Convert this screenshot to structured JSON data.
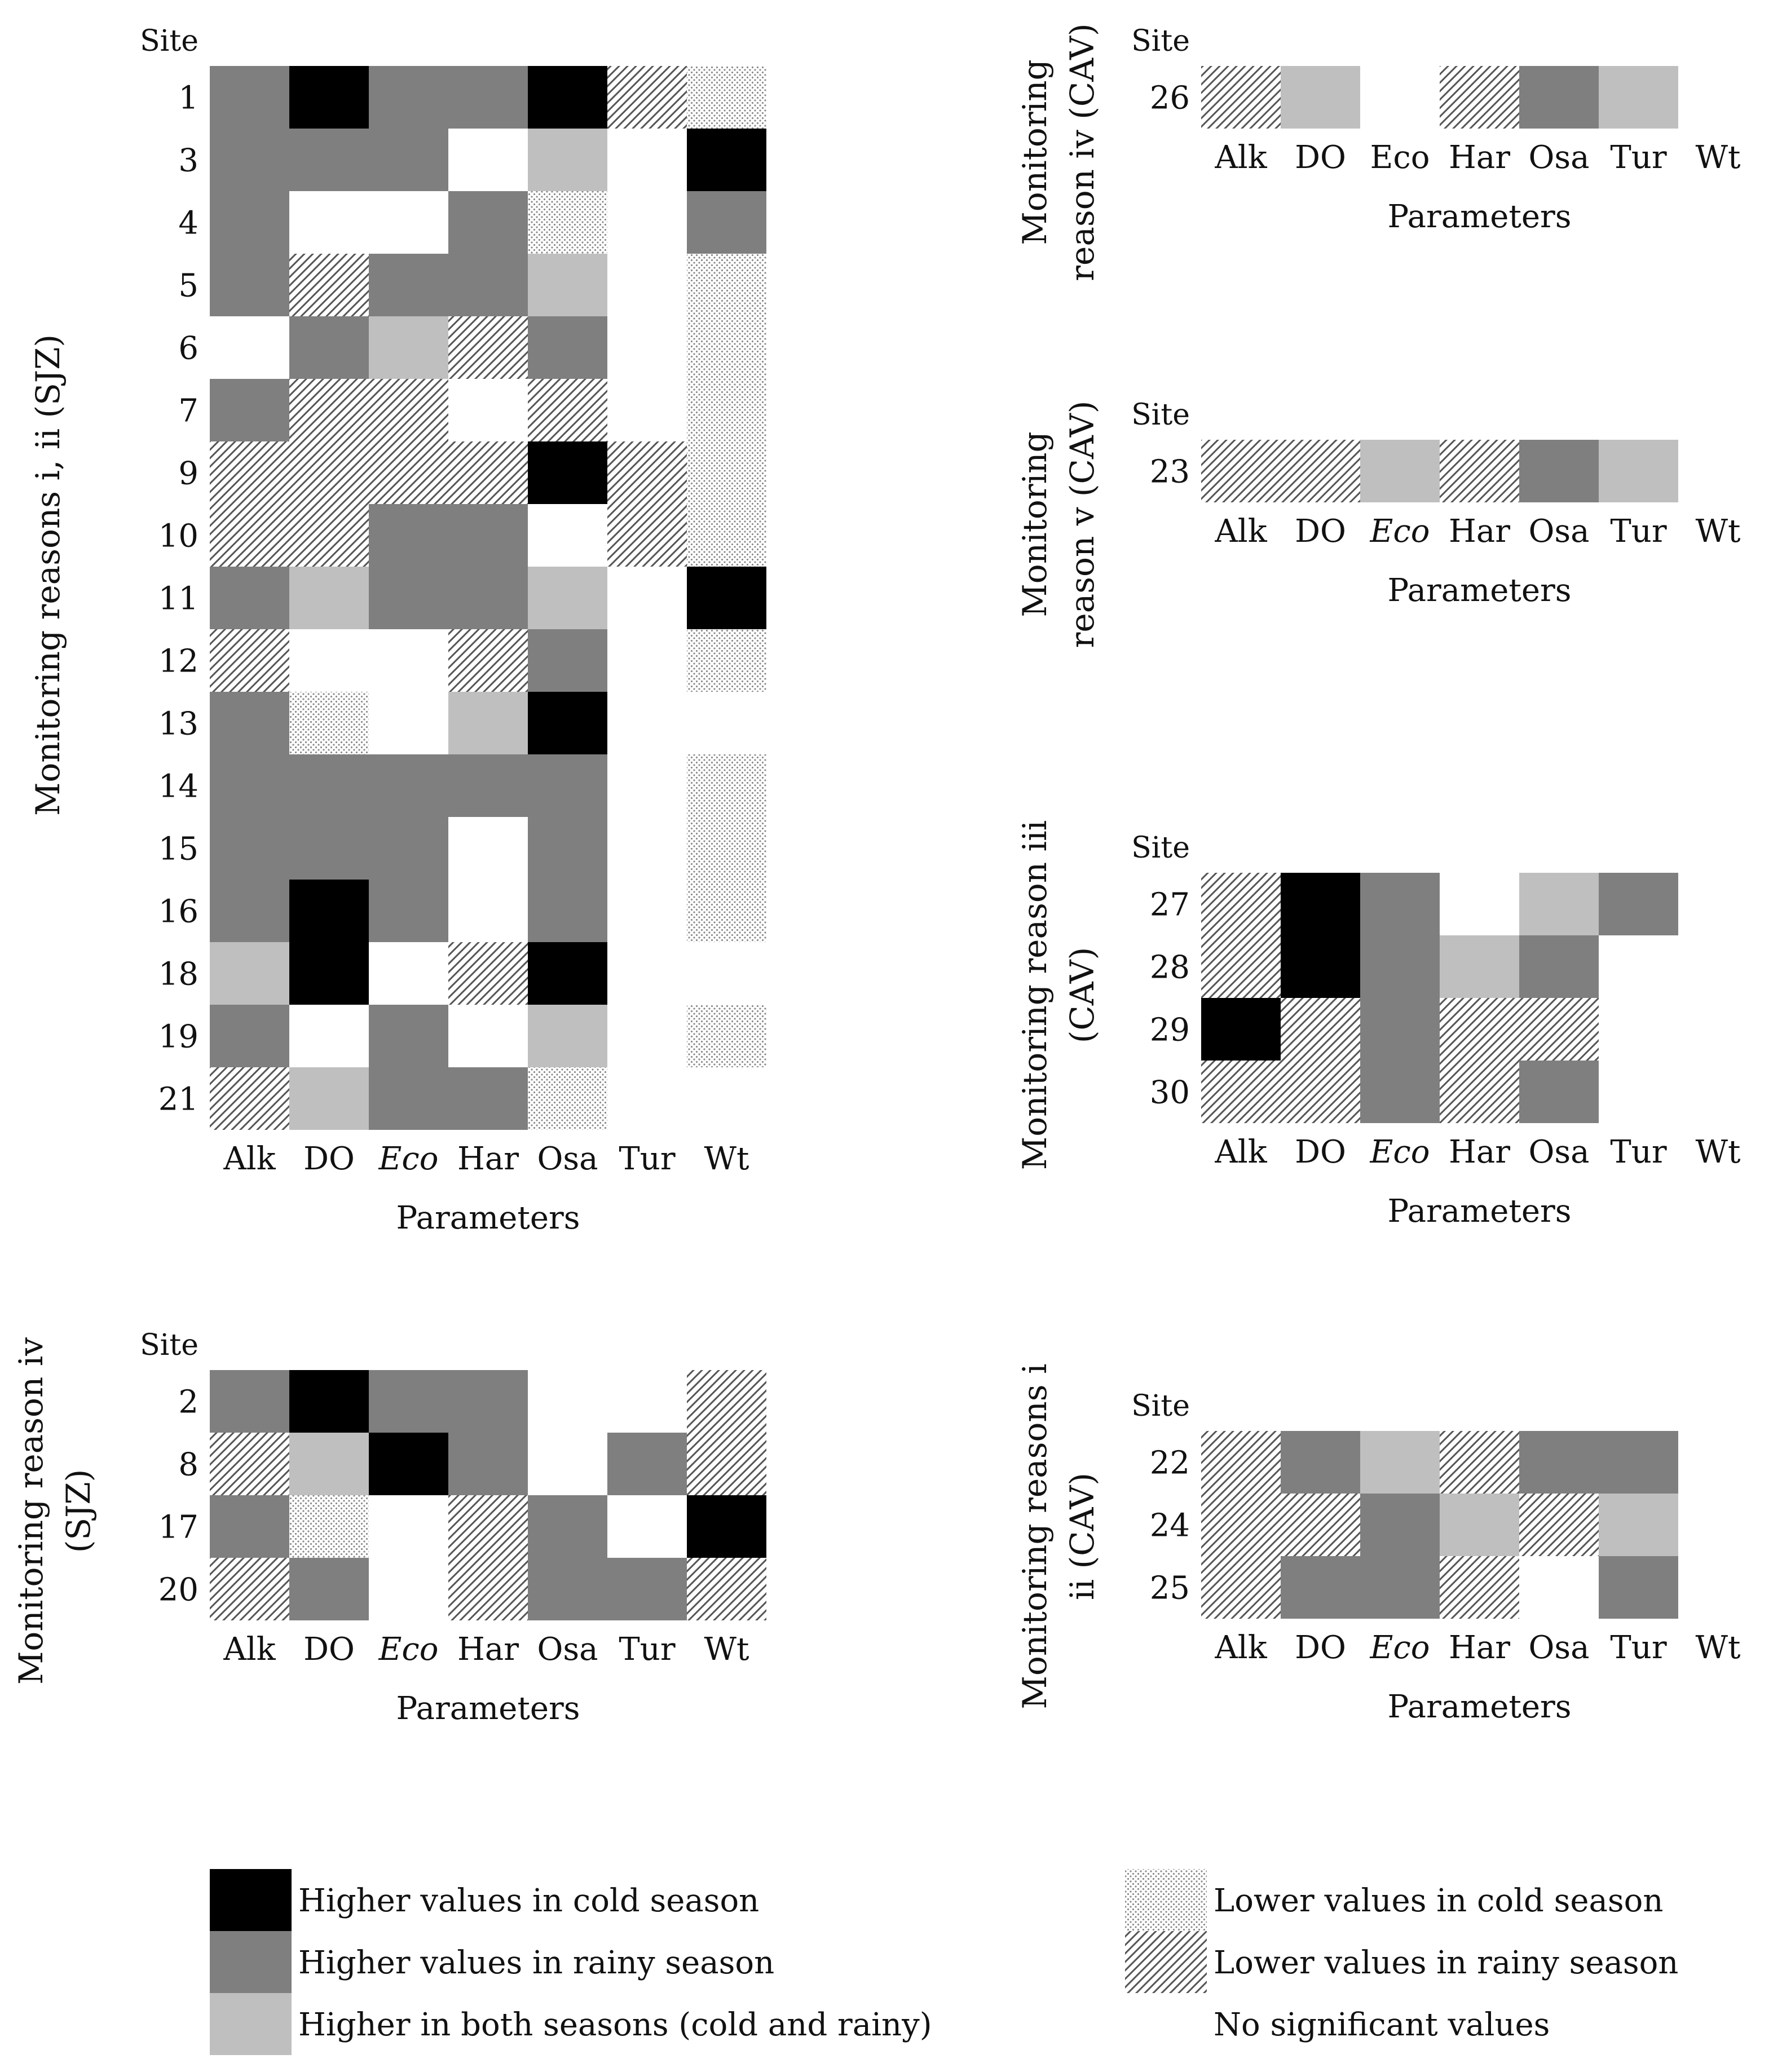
{
  "chart_data": [
    {
      "type": "heatmap",
      "title": "Monitoring reasons i, ii (SJZ)",
      "ylabel": "Site",
      "xlabel": "Parameters",
      "categories": [
        "Alk",
        "DO",
        "Eco",
        "Har",
        "Osa",
        "Tur",
        "Wt"
      ],
      "italic_categories": [
        "Eco"
      ],
      "rows": [
        {
          "site": "1",
          "values": [
            "R",
            "C",
            "R",
            "R",
            "C",
            "LR",
            "LC"
          ]
        },
        {
          "site": "3",
          "values": [
            "R",
            "R",
            "R",
            "N",
            "B",
            "N",
            "C"
          ]
        },
        {
          "site": "4",
          "values": [
            "R",
            "N",
            "N",
            "R",
            "LC",
            "N",
            "R"
          ]
        },
        {
          "site": "5",
          "values": [
            "R",
            "LR",
            "R",
            "R",
            "B",
            "N",
            "LC"
          ]
        },
        {
          "site": "6",
          "values": [
            "N",
            "R",
            "B",
            "LR",
            "R",
            "N",
            "LC"
          ]
        },
        {
          "site": "7",
          "values": [
            "R",
            "LR",
            "LR",
            "N",
            "LR",
            "N",
            "LC"
          ]
        },
        {
          "site": "9",
          "values": [
            "LR",
            "LR",
            "LR",
            "LR",
            "C",
            "LR",
            "LC"
          ]
        },
        {
          "site": "10",
          "values": [
            "LR",
            "LR",
            "R",
            "R",
            "N",
            "LR",
            "LC"
          ]
        },
        {
          "site": "11",
          "values": [
            "R",
            "B",
            "R",
            "R",
            "B",
            "N",
            "C"
          ]
        },
        {
          "site": "12",
          "values": [
            "LR",
            "N",
            "N",
            "LR",
            "R",
            "N",
            "LC"
          ]
        },
        {
          "site": "13",
          "values": [
            "R",
            "LC",
            "N",
            "B",
            "C",
            "N",
            "N"
          ]
        },
        {
          "site": "14",
          "values": [
            "R",
            "R",
            "R",
            "R",
            "R",
            "N",
            "LC"
          ]
        },
        {
          "site": "15",
          "values": [
            "R",
            "R",
            "R",
            "N",
            "R",
            "N",
            "LC"
          ]
        },
        {
          "site": "16",
          "values": [
            "R",
            "C",
            "R",
            "N",
            "R",
            "N",
            "LC"
          ]
        },
        {
          "site": "18",
          "values": [
            "B",
            "C",
            "N",
            "LR",
            "C",
            "N",
            "N"
          ]
        },
        {
          "site": "19",
          "values": [
            "R",
            "N",
            "R",
            "N",
            "B",
            "N",
            "LC"
          ]
        },
        {
          "site": "21",
          "values": [
            "LR",
            "B",
            "R",
            "R",
            "LC",
            "N",
            "N"
          ]
        }
      ]
    },
    {
      "type": "heatmap",
      "title": "Monitoring reason iv (SJZ)",
      "ylabel": "Site",
      "xlabel": "Parameters",
      "categories": [
        "Alk",
        "DO",
        "Eco",
        "Har",
        "Osa",
        "Tur",
        "Wt"
      ],
      "italic_categories": [
        "Eco"
      ],
      "rows": [
        {
          "site": "2",
          "values": [
            "R",
            "C",
            "R",
            "R",
            "N",
            "N",
            "LR"
          ]
        },
        {
          "site": "8",
          "values": [
            "LR",
            "B",
            "C",
            "R",
            "N",
            "R",
            "LR"
          ]
        },
        {
          "site": "17",
          "values": [
            "R",
            "LC",
            "N",
            "LR",
            "R",
            "N",
            "C"
          ]
        },
        {
          "site": "20",
          "values": [
            "LR",
            "R",
            "N",
            "LR",
            "R",
            "R",
            "LR"
          ]
        }
      ]
    },
    {
      "type": "heatmap",
      "title": "Monitoring reason iv (CAV)",
      "ylabel": "Site",
      "xlabel": "Parameters",
      "categories": [
        "Alk",
        "DO",
        "Eco",
        "Har",
        "Osa",
        "Tur",
        "Wt"
      ],
      "italic_categories": [],
      "rows": [
        {
          "site": "26",
          "values": [
            "LR",
            "B",
            "N",
            "LR",
            "R",
            "B",
            "N"
          ]
        }
      ]
    },
    {
      "type": "heatmap",
      "title": "Monitoring reason v (CAV)",
      "ylabel": "Site",
      "xlabel": "Parameters",
      "categories": [
        "Alk",
        "DO",
        "Eco",
        "Har",
        "Osa",
        "Tur",
        "Wt"
      ],
      "italic_categories": [
        "Eco"
      ],
      "rows": [
        {
          "site": "23",
          "values": [
            "LR",
            "LR",
            "B",
            "LR",
            "R",
            "B",
            "N"
          ]
        }
      ]
    },
    {
      "type": "heatmap",
      "title": "Monitoring reason iii (CAV)",
      "ylabel": "Site",
      "xlabel": "Parameters",
      "categories": [
        "Alk",
        "DO",
        "Eco",
        "Har",
        "Osa",
        "Tur",
        "Wt"
      ],
      "italic_categories": [
        "Eco"
      ],
      "rows": [
        {
          "site": "27",
          "values": [
            "LR",
            "C",
            "R",
            "N",
            "B",
            "R",
            "N"
          ]
        },
        {
          "site": "28",
          "values": [
            "LR",
            "C",
            "R",
            "B",
            "R",
            "N",
            "N"
          ]
        },
        {
          "site": "29",
          "values": [
            "C",
            "LR",
            "R",
            "LR",
            "LR",
            "N",
            "N"
          ]
        },
        {
          "site": "30",
          "values": [
            "LR",
            "LR",
            "R",
            "LR",
            "R",
            "N",
            "N"
          ]
        }
      ]
    },
    {
      "type": "heatmap",
      "title": "Monitoring reasons i ii (CAV)",
      "ylabel": "Site",
      "xlabel": "Parameters",
      "categories": [
        "Alk",
        "DO",
        "Eco",
        "Har",
        "Osa",
        "Tur",
        "Wt"
      ],
      "italic_categories": [
        "Eco"
      ],
      "rows": [
        {
          "site": "22",
          "values": [
            "LR",
            "R",
            "B",
            "LR",
            "R",
            "R",
            "N"
          ]
        },
        {
          "site": "24",
          "values": [
            "LR",
            "LR",
            "R",
            "B",
            "LR",
            "B",
            "N"
          ]
        },
        {
          "site": "25",
          "values": [
            "LR",
            "R",
            "R",
            "LR",
            "N",
            "R",
            "N"
          ]
        }
      ]
    }
  ],
  "legend": [
    {
      "key": "C",
      "label": "Higher values in cold season",
      "color": "#000000",
      "pattern": "solid"
    },
    {
      "key": "R",
      "label": "Higher values in rainy season",
      "color": "#7f7f7f",
      "pattern": "solid"
    },
    {
      "key": "B",
      "label": "Higher in both seasons (cold and rainy)",
      "color": "#bfbfbf",
      "pattern": "solid"
    },
    {
      "key": "LC",
      "label": "Lower values in cold season",
      "color": "#7f7f7f",
      "pattern": "dots"
    },
    {
      "key": "LR",
      "label": "Lower values in rainy season",
      "color": "#555555",
      "pattern": "diagonal"
    },
    {
      "key": "N",
      "label": "No significant values",
      "color": "#ffffff",
      "pattern": "none"
    }
  ]
}
